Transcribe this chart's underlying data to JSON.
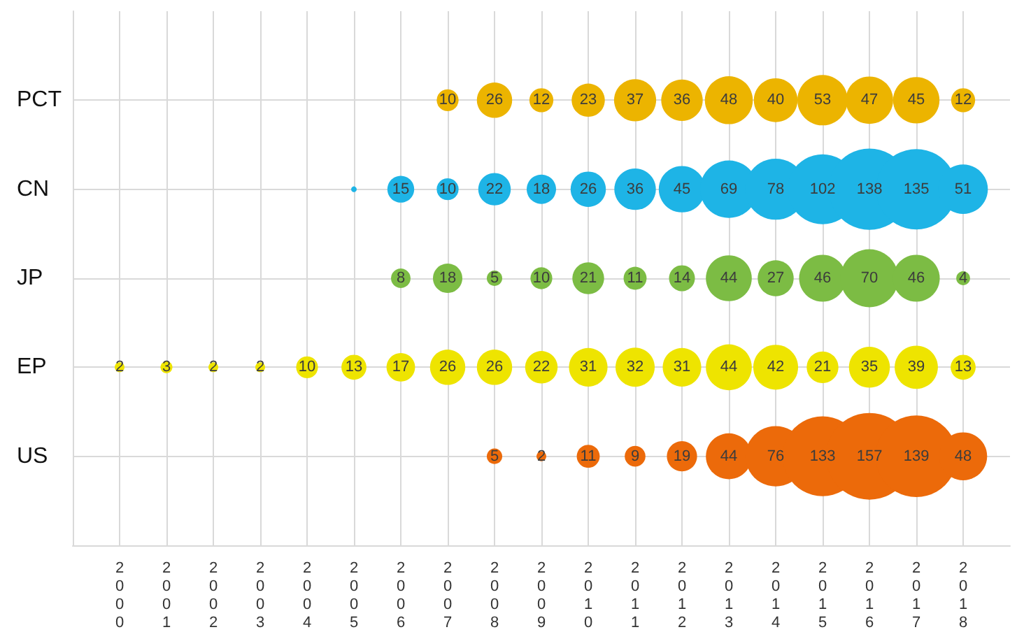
{
  "chart_data": {
    "type": "bubble",
    "orientation": "horizontal",
    "categories": [
      "PCT",
      "CN",
      "JP",
      "EP",
      "US"
    ],
    "xlim": [
      1999,
      2019
    ],
    "xticks": [
      2000,
      2001,
      2002,
      2003,
      2004,
      2005,
      2006,
      2007,
      2008,
      2009,
      2010,
      2011,
      2012,
      2013,
      2014,
      2015,
      2016,
      2017,
      2018
    ],
    "series": [
      {
        "values": [
          null,
          null,
          null,
          2000,
          null
        ],
        "sizes": [
          null,
          null,
          null,
          2,
          null
        ],
        "colors": [
          null,
          null,
          null,
          "#eee400",
          null
        ],
        "value_labels": [
          null,
          null,
          null,
          "2",
          null
        ]
      },
      {
        "values": [
          null,
          null,
          null,
          2001,
          null
        ],
        "sizes": [
          null,
          null,
          null,
          3,
          null
        ],
        "colors": [
          null,
          null,
          null,
          "#eee400",
          null
        ],
        "value_labels": [
          null,
          null,
          null,
          "3",
          null
        ]
      },
      {
        "values": [
          null,
          null,
          null,
          2002,
          null
        ],
        "sizes": [
          null,
          null,
          null,
          2,
          null
        ],
        "colors": [
          null,
          null,
          null,
          "#eee400",
          null
        ],
        "value_labels": [
          null,
          null,
          null,
          "2",
          null
        ]
      },
      {
        "values": [
          null,
          null,
          null,
          2003,
          null
        ],
        "sizes": [
          null,
          null,
          null,
          2,
          null
        ],
        "colors": [
          null,
          null,
          null,
          "#eee400",
          null
        ],
        "value_labels": [
          null,
          null,
          null,
          "2",
          null
        ]
      },
      {
        "values": [
          null,
          null,
          null,
          2004,
          null
        ],
        "sizes": [
          null,
          null,
          null,
          10,
          null
        ],
        "colors": [
          null,
          null,
          null,
          "#eee400",
          null
        ],
        "value_labels": [
          null,
          null,
          null,
          "10",
          null
        ]
      },
      {
        "values": [
          null,
          2005,
          null,
          2005,
          null
        ],
        "sizes": [
          null,
          null,
          null,
          13,
          null
        ],
        "colors": [
          null,
          "#1eb4e6",
          null,
          "#eee400",
          null
        ],
        "value_labels": [
          null,
          null,
          null,
          "13",
          null
        ]
      },
      {
        "values": [
          null,
          2006,
          2006,
          2006,
          null
        ],
        "sizes": [
          null,
          15,
          8,
          17,
          null
        ],
        "colors": [
          null,
          "#1eb4e6",
          "#7cbc44",
          "#eee400",
          null
        ],
        "value_labels": [
          null,
          "15",
          "8",
          "17",
          null
        ]
      },
      {
        "values": [
          2007,
          2007,
          2007,
          2007,
          null
        ],
        "sizes": [
          10,
          10,
          18,
          26,
          null
        ],
        "colors": [
          "#ecb400",
          "#1eb4e6",
          "#7cbc44",
          "#eee400",
          null
        ],
        "value_labels": [
          "10",
          "10",
          "18",
          "26",
          null
        ]
      },
      {
        "values": [
          2008,
          2008,
          2008,
          2008,
          2008
        ],
        "sizes": [
          26,
          22,
          5,
          26,
          5
        ],
        "colors": [
          "#ecb400",
          "#1eb4e6",
          "#7cbc44",
          "#eee400",
          "#ec6a0a"
        ],
        "value_labels": [
          "26",
          "22",
          "5",
          "26",
          "5"
        ]
      },
      {
        "values": [
          2009,
          2009,
          2009,
          2009,
          2009
        ],
        "sizes": [
          12,
          18,
          10,
          22,
          2
        ],
        "colors": [
          "#ecb400",
          "#1eb4e6",
          "#7cbc44",
          "#eee400",
          "#ec6a0a"
        ],
        "value_labels": [
          "12",
          "18",
          "10",
          "22",
          "2"
        ]
      },
      {
        "values": [
          2010,
          2010,
          2010,
          2010,
          2010
        ],
        "sizes": [
          23,
          26,
          21,
          31,
          11
        ],
        "colors": [
          "#ecb400",
          "#1eb4e6",
          "#7cbc44",
          "#eee400",
          "#ec6a0a"
        ],
        "value_labels": [
          "23",
          "26",
          "21",
          "31",
          "11"
        ]
      },
      {
        "values": [
          2011,
          2011,
          2011,
          2011,
          2011
        ],
        "sizes": [
          37,
          36,
          11,
          32,
          9
        ],
        "colors": [
          "#ecb400",
          "#1eb4e6",
          "#7cbc44",
          "#eee400",
          "#ec6a0a"
        ],
        "value_labels": [
          "37",
          "36",
          "11",
          "32",
          "9"
        ]
      },
      {
        "values": [
          2012,
          2012,
          2012,
          2012,
          2012
        ],
        "sizes": [
          36,
          45,
          14,
          31,
          19
        ],
        "colors": [
          "#ecb400",
          "#1eb4e6",
          "#7cbc44",
          "#eee400",
          "#ec6a0a"
        ],
        "value_labels": [
          "36",
          "45",
          "14",
          "31",
          "19"
        ]
      },
      {
        "values": [
          2013,
          2013,
          2013,
          2013,
          2013
        ],
        "sizes": [
          48,
          69,
          44,
          44,
          44
        ],
        "colors": [
          "#ecb400",
          "#1eb4e6",
          "#7cbc44",
          "#eee400",
          "#ec6a0a"
        ],
        "value_labels": [
          "48",
          "69",
          "44",
          "44",
          "44"
        ]
      },
      {
        "values": [
          2014,
          2014,
          2014,
          2014,
          2014
        ],
        "sizes": [
          40,
          78,
          27,
          42,
          76
        ],
        "colors": [
          "#ecb400",
          "#1eb4e6",
          "#7cbc44",
          "#eee400",
          "#ec6a0a"
        ],
        "value_labels": [
          "40",
          "78",
          "27",
          "42",
          "76"
        ]
      },
      {
        "values": [
          2015,
          2015,
          2015,
          2015,
          2015
        ],
        "sizes": [
          53,
          102,
          46,
          21,
          133
        ],
        "colors": [
          "#ecb400",
          "#1eb4e6",
          "#7cbc44",
          "#eee400",
          "#ec6a0a"
        ],
        "value_labels": [
          "53",
          "102",
          "46",
          "21",
          "133"
        ]
      },
      {
        "values": [
          2016,
          2016,
          2016,
          2016,
          2016
        ],
        "sizes": [
          47,
          138,
          70,
          35,
          157
        ],
        "colors": [
          "#ecb400",
          "#1eb4e6",
          "#7cbc44",
          "#eee400",
          "#ec6a0a"
        ],
        "value_labels": [
          "47",
          "138",
          "70",
          "35",
          "157"
        ]
      },
      {
        "values": [
          2017,
          2017,
          2017,
          2017,
          2017
        ],
        "sizes": [
          45,
          135,
          46,
          39,
          139
        ],
        "colors": [
          "#ecb400",
          "#1eb4e6",
          "#7cbc44",
          "#eee400",
          "#ec6a0a"
        ],
        "value_labels": [
          "45",
          "135",
          "46",
          "39",
          "139"
        ]
      },
      {
        "values": [
          2018,
          2018,
          2018,
          2018,
          2018
        ],
        "sizes": [
          12,
          51,
          4,
          13,
          48
        ],
        "colors": [
          "#ecb400",
          "#1eb4e6",
          "#7cbc44",
          "#eee400",
          "#ec6a0a"
        ],
        "value_labels": [
          "12",
          "51",
          "4",
          "13",
          "48"
        ]
      }
    ],
    "grid": true
  }
}
